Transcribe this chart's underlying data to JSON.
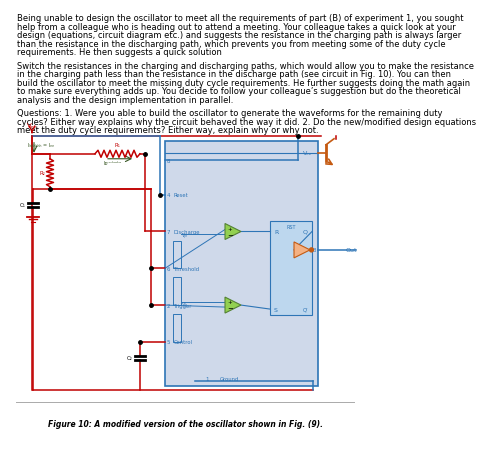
{
  "title": "Figure 10: A modified version of the oscillator shown in Fig. (9).",
  "paragraph1": "Being unable to design the oscillator to meet all the requirements of part (B) of experiment 1, you sought help from a colleague who is heading out to attend a meeting. Your colleague takes a quick look at your design (equations, circuit diagram etc.) and suggests the resistance in the charging path is always larger than the resistance in the discharging path, which prevents you from meeting some of the duty cycle requirements. He then suggests a quick solution",
  "paragraph2": "Switch the resistances in the charging and discharging paths, which would allow you to make the resistance in the charging path less than the resistance in the discharge path (see circuit in Fig. 10). You can then build the oscillator to meet the missing duty cycle requirements. He further suggests doing the math again to make sure everything adds up. You decide to follow your colleague’s suggestion but do the theoretical analysis and the design implementation in parallel.",
  "paragraph3": "Questions: 1. Were you able to build the oscillator to generate the waveforms for the remaining duty cycles? Either way explains why the circuit behaved the way it did. 2. Do the new/modified design equations meet the duty cycle requirements? Either way, explain why or why not.",
  "bg_color": "#ffffff",
  "text_color": "#000000",
  "circuit_bg": "#cfd9ea",
  "circuit_border": "#2e75b6",
  "red": "#c00000",
  "blue": "#2e75b6",
  "dark_blue": "#1f497d",
  "green": "#375623",
  "orange": "#c55a11",
  "chip_bg": "#92d050",
  "chip_border": "#548235",
  "sr_bg": "#bdd7ee",
  "buf_color": "#f4b183",
  "sep_color": "#aaaaaa"
}
